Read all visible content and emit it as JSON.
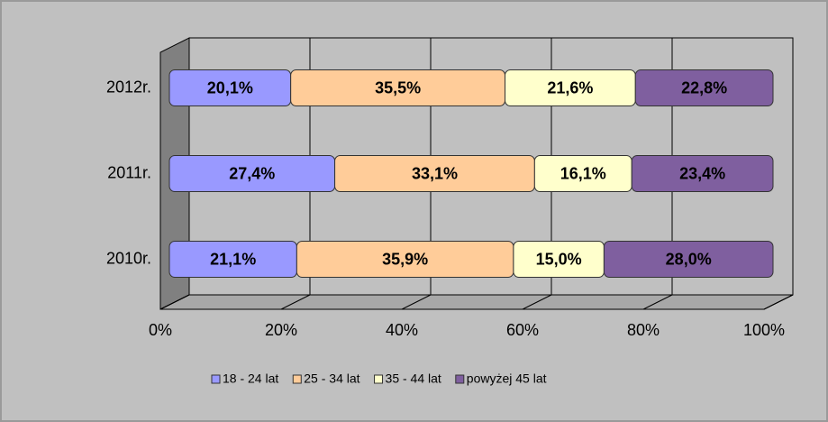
{
  "chart_data": {
    "type": "stacked_bar_horizontal",
    "categories": [
      "2010r.",
      "2011r.",
      "2012r."
    ],
    "series": [
      {
        "name": "18 - 24 lat",
        "color": "#9999ff",
        "values": [
          21.1,
          27.4,
          20.1
        ],
        "value_labels": [
          "21,1%",
          "27,4%",
          "20,1%"
        ]
      },
      {
        "name": "25 - 34 lat",
        "color": "#ffcc99",
        "values": [
          35.9,
          33.1,
          35.5
        ],
        "value_labels": [
          "35,9%",
          "33,1%",
          "35,5%"
        ]
      },
      {
        "name": "35 - 44 lat",
        "color": "#ffffcc",
        "values": [
          15.0,
          16.1,
          21.6
        ],
        "value_labels": [
          "15,0%",
          "16,1%",
          "21,6%"
        ]
      },
      {
        "name": "powyżej 45 lat",
        "color": "#7f5f9f",
        "values": [
          28.0,
          23.4,
          22.8
        ],
        "value_labels": [
          "28,0%",
          "23,4%",
          "22,8%"
        ]
      }
    ],
    "xlim": [
      0,
      100
    ],
    "xticks": [
      {
        "value": 0,
        "label": "0%"
      },
      {
        "value": 20,
        "label": "20%"
      },
      {
        "value": 40,
        "label": "40%"
      },
      {
        "value": 60,
        "label": "60%"
      },
      {
        "value": 80,
        "label": "80%"
      },
      {
        "value": 100,
        "label": "100%"
      }
    ],
    "grid": true,
    "legend": "bottom"
  }
}
